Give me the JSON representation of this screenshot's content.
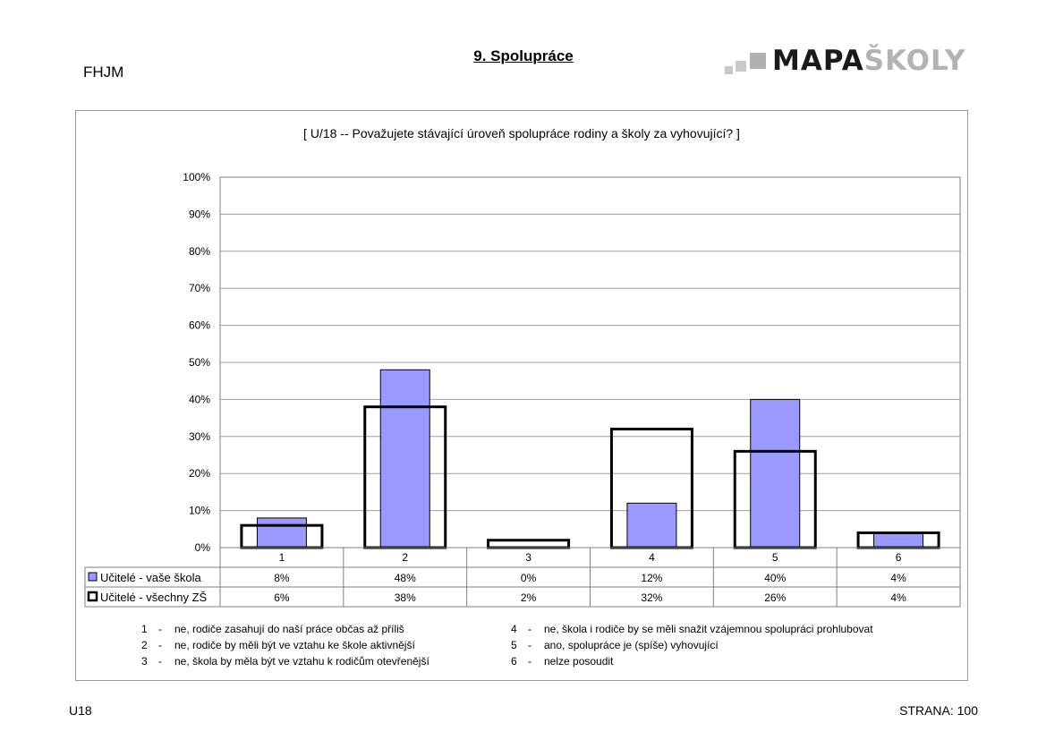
{
  "header": {
    "school_code": "FHJM",
    "section_title": "9. Spolupráce",
    "logo_text_dark": "MAPA",
    "logo_text_light": "ŠKOLY"
  },
  "colors": {
    "series1_fill": "#9999ff",
    "series2_fill": "#ffffff",
    "gridline": "#a0a0a0",
    "frame": "#9a9a9a"
  },
  "chart_data": {
    "type": "bar",
    "title": "[ U/18 -- Považujete stávající úroveň spolupráce rodiny a školy za vyhovující? ]",
    "categories": [
      "1",
      "2",
      "3",
      "4",
      "5",
      "6"
    ],
    "series": [
      {
        "name": "Učitelé - vaše škola",
        "values": [
          8,
          48,
          0,
          12,
          40,
          4
        ],
        "labels": [
          "8%",
          "48%",
          "0%",
          "12%",
          "40%",
          "4%"
        ]
      },
      {
        "name": "Učitelé - všechny ZŠ",
        "values": [
          6,
          38,
          2,
          32,
          26,
          4
        ],
        "labels": [
          "6%",
          "38%",
          "2%",
          "32%",
          "26%",
          "4%"
        ]
      }
    ],
    "yticks": [
      "0%",
      "10%",
      "20%",
      "30%",
      "40%",
      "50%",
      "60%",
      "70%",
      "80%",
      "90%",
      "100%"
    ],
    "ylim": [
      0,
      100
    ],
    "grid": true,
    "legend": "data-table below chart"
  },
  "answer_key": [
    {
      "num": "1",
      "text": "ne, rodiče zasahují do naší práce občas až příliš"
    },
    {
      "num": "2",
      "text": "ne, rodiče by měli být ve vztahu ke škole aktivnější"
    },
    {
      "num": "3",
      "text": "ne, škola by měla být ve vztahu k rodičům otevřenější"
    },
    {
      "num": "4",
      "text": "ne, škola i rodiče by se měli snažit vzájemnou spolupráci prohlubovat"
    },
    {
      "num": "5",
      "text": "ano, spolupráce je (spíše) vyhovující"
    },
    {
      "num": "6",
      "text": "nelze posoudit"
    }
  ],
  "footer": {
    "question_code": "U18",
    "page_label": "STRANA: 100"
  }
}
